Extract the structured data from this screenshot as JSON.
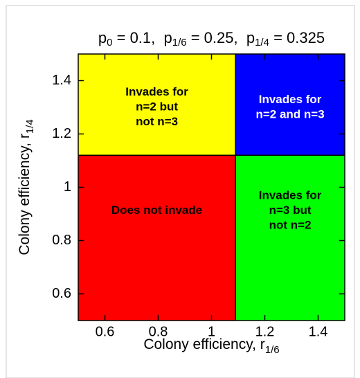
{
  "chart_data": {
    "type": "region",
    "title": [
      {
        "text": "p",
        "sub": "0",
        "rest": " = 0.1,  "
      },
      {
        "text": "p",
        "sub": "1/6",
        "rest": " = 0.25,  "
      },
      {
        "text": "p",
        "sub": "1/4",
        "rest": " = 0.325"
      }
    ],
    "xlabel": {
      "text": "Colony efficiency, r",
      "sub": "1/6"
    },
    "ylabel": {
      "text": "Colony efficiency, r",
      "sub": "1/4"
    },
    "xlim": [
      0.5,
      1.5
    ],
    "ylim": [
      0.5,
      1.5
    ],
    "xticks": [
      0.6,
      0.8,
      1,
      1.2,
      1.4
    ],
    "yticks": [
      0.6,
      0.8,
      1,
      1.2,
      1.4
    ],
    "x_boundary": 1.09,
    "y_boundary": 1.12,
    "regions": [
      {
        "quadrant": "upper-left",
        "color": "#ffff00",
        "text_color": "#000000",
        "lines": [
          "Invades for",
          "n=2 but",
          "not n=3"
        ]
      },
      {
        "quadrant": "upper-right",
        "color": "#0000ff",
        "text_color": "#ffffff",
        "lines": [
          "Invades for",
          "n=2 and n=3"
        ]
      },
      {
        "quadrant": "lower-left",
        "color": "#ff0000",
        "text_color": "#000000",
        "lines": [
          "Does not invade"
        ]
      },
      {
        "quadrant": "lower-right",
        "color": "#00ff00",
        "text_color": "#000000",
        "lines": [
          "Invades for",
          "n=3 but",
          "not n=2"
        ]
      }
    ]
  }
}
